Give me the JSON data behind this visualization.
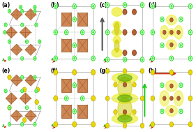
{
  "panels": [
    "(a)",
    "(b)",
    "(c)",
    "(d)",
    "(e)",
    "(f)",
    "(g)",
    "(h)"
  ],
  "bg_color": "#ffffff",
  "label_fontsize": 5.5,
  "green_color": "#22dd22",
  "green_fill": "#44ee44",
  "brown_color": "#c87941",
  "brown_dark": "#9a5a28",
  "brown_face": "#d4935a",
  "yellow_color": "#ddcc00",
  "yellow_face": "#e8d800",
  "orange_color": "#cc6622",
  "light_gray": "#bbbbbb",
  "arrow_gray": "#555555",
  "arrow_green": "#22cc22",
  "arrow_orange": "#cc3311",
  "yellow_iso": "#cccc00",
  "yellow_iso2": "#eeee44",
  "green_iso": "#55aa00",
  "axis_x_color": "#cc2200",
  "axis_y_color": "#22aa00",
  "axis_z_color": "#0000cc"
}
